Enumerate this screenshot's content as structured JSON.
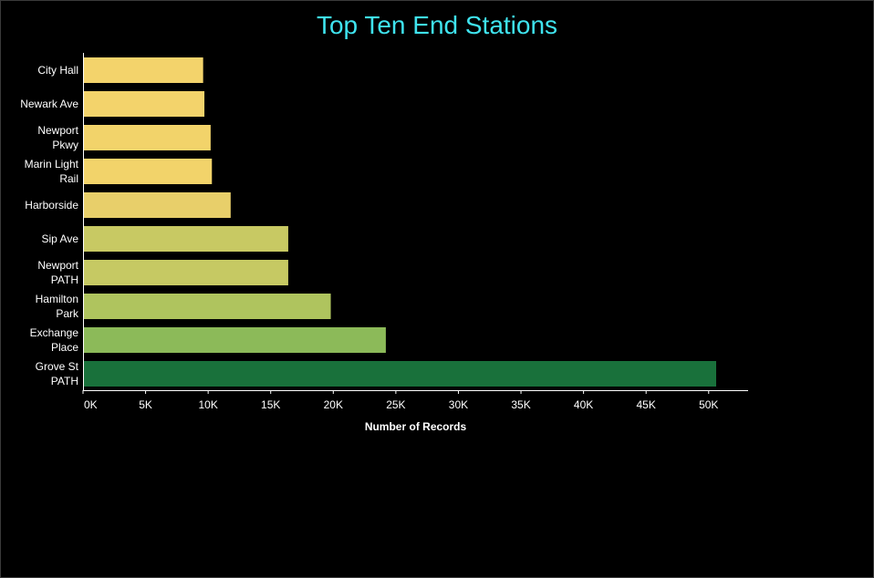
{
  "chart_data": {
    "type": "bar",
    "orientation": "horizontal",
    "title": "Top Ten End Stations",
    "xlabel": "Number of Records",
    "ylabel": "",
    "categories": [
      [
        "City Hall"
      ],
      [
        "Newark Ave"
      ],
      [
        "Newport",
        "Pkwy"
      ],
      [
        "Marin Light",
        "Rail"
      ],
      [
        "Harborside"
      ],
      [
        "Sip Ave"
      ],
      [
        "Newport",
        "PATH"
      ],
      [
        "Hamilton",
        "Park"
      ],
      [
        "Exchange",
        "Place"
      ],
      [
        "Grove St",
        "PATH"
      ]
    ],
    "values": [
      9600,
      9700,
      10200,
      10300,
      11800,
      16400,
      16400,
      19800,
      24200,
      50600
    ],
    "bar_colors": [
      "#f3d36b",
      "#f3d36b",
      "#f2d36a",
      "#f2d36a",
      "#e8cf6a",
      "#c8c963",
      "#c6c963",
      "#afc45e",
      "#8cba59",
      "#19713b"
    ],
    "xlim": [
      0,
      53000
    ],
    "xticks": [
      0,
      5000,
      10000,
      15000,
      20000,
      25000,
      30000,
      35000,
      40000,
      45000,
      50000
    ],
    "xtick_labels": [
      "0K",
      "5K",
      "10K",
      "15K",
      "20K",
      "25K",
      "30K",
      "35K",
      "40K",
      "45K",
      "50K"
    ],
    "grid": false,
    "legend": "none",
    "title_color": "#3fe3ee",
    "background_color": "#000000",
    "axis_color": "#ffffff"
  }
}
